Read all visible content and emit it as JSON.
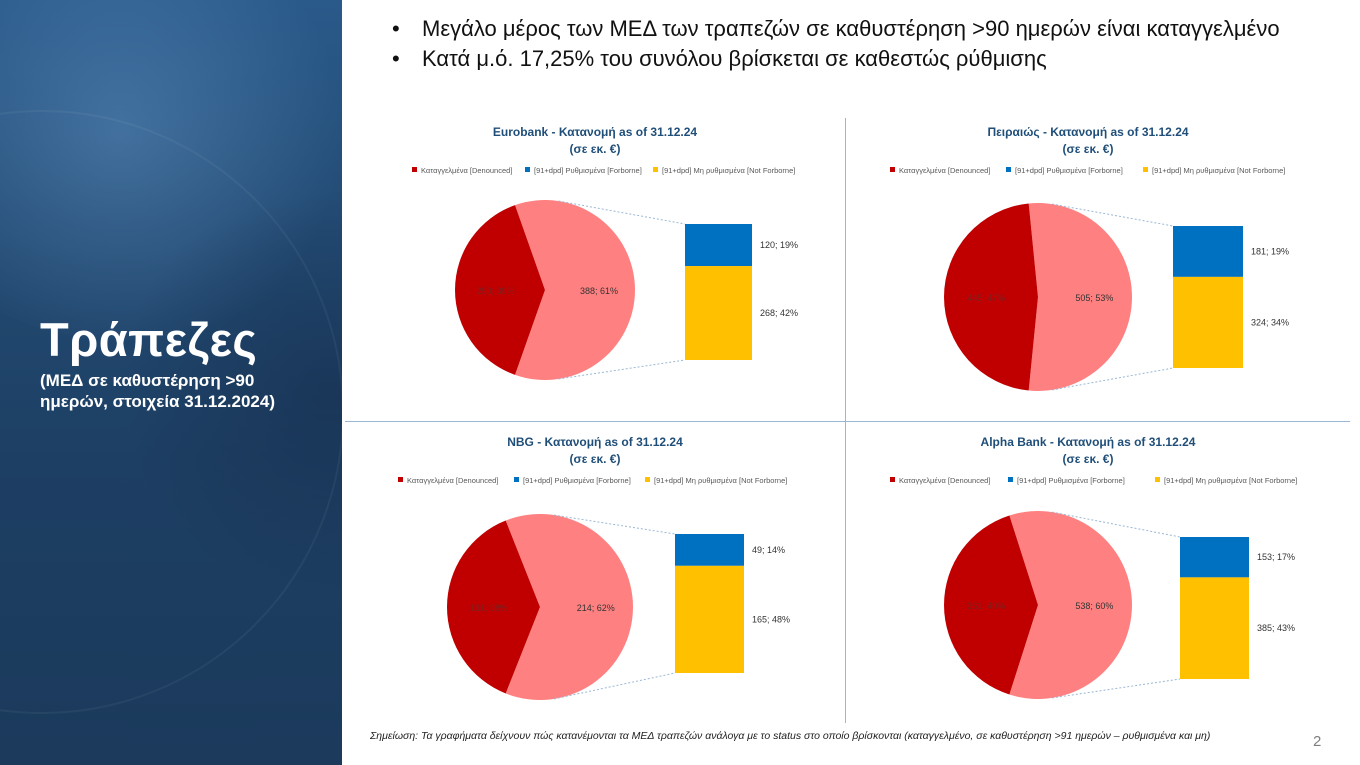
{
  "sidebar": {
    "title": "Τράπεζες",
    "subtitle": "(ΜΕΔ σε καθυστέρηση >90 ημερών, στοιχεία 31.12.2024)"
  },
  "bullets": [
    "Μεγάλο μέρος των ΜΕΔ των τραπεζών σε καθυστέρηση >90 ημερών είναι καταγγελμένο",
    "Κατά μ.ό. 17,25% του συνόλου βρίσκεται σε καθεστώς ρύθμισης"
  ],
  "colors": {
    "denounced": "#c00000",
    "rest": "#ff8080",
    "forborne": "#0070c0",
    "not_forborne": "#ffc000",
    "title_text": "#1f4e79",
    "connector": "#9bb7d4"
  },
  "legend_labels": [
    "Καταγγελμένα [Denounced]",
    "[91+dpd] Ρυθμισμένα [Forborne]",
    "[91+dpd] Μη ρυθμισμένα [Not Forborne]"
  ],
  "chart_data": [
    {
      "type": "pie",
      "title": "Eurobank - Κατανομή as of 31.12.24",
      "subtitle": "(σε εκ. €)",
      "slices": [
        {
          "name": "Καταγγελμένα [Denounced]",
          "value": 250,
          "label": "250; 39%"
        },
        {
          "name": "[91+dpd]",
          "value": 388,
          "label": "388; 61%"
        }
      ],
      "breakdown": [
        {
          "name": "[91+dpd] Ρυθμισμένα [Forborne]",
          "value": 120,
          "label": "120; 19%"
        },
        {
          "name": "[91+dpd] Μη ρυθμισμένα [Not Forborne]",
          "value": 268,
          "label": "268; 42%"
        }
      ]
    },
    {
      "type": "pie",
      "title": "Πειραιώς - Κατανομή as of 31.12.24",
      "subtitle": "(σε εκ. €)",
      "slices": [
        {
          "name": "Καταγγελμένα [Denounced]",
          "value": 445,
          "label": "445; 47%"
        },
        {
          "name": "[91+dpd]",
          "value": 505,
          "label": "505; 53%"
        }
      ],
      "breakdown": [
        {
          "name": "[91+dpd] Ρυθμισμένα [Forborne]",
          "value": 181,
          "label": "181; 19%"
        },
        {
          "name": "[91+dpd] Μη ρυθμισμένα [Not Forborne]",
          "value": 324,
          "label": "324; 34%"
        }
      ]
    },
    {
      "type": "pie",
      "title": "NBG - Κατανομή as of 31.12.24",
      "subtitle": "(σε εκ. €)",
      "slices": [
        {
          "name": "Καταγγελμένα [Denounced]",
          "value": 131,
          "label": "131; 38%"
        },
        {
          "name": "[91+dpd]",
          "value": 214,
          "label": "214; 62%"
        }
      ],
      "breakdown": [
        {
          "name": "[91+dpd] Ρυθμισμένα [Forborne]",
          "value": 49,
          "label": "49; 14%"
        },
        {
          "name": "[91+dpd] Μη ρυθμισμένα [Not Forborne]",
          "value": 165,
          "label": "165; 48%"
        }
      ]
    },
    {
      "type": "pie",
      "title": "Alpha Bank - Κατανομή as of 31.12.24",
      "subtitle": "(σε εκ. €)",
      "slices": [
        {
          "name": "Καταγγελμένα [Denounced]",
          "value": 361,
          "label": "361; 40%"
        },
        {
          "name": "[91+dpd]",
          "value": 538,
          "label": "538; 60%"
        }
      ],
      "breakdown": [
        {
          "name": "[91+dpd] Ρυθμισμένα [Forborne]",
          "value": 153,
          "label": "153; 17%"
        },
        {
          "name": "[91+dpd] Μη ρυθμισμένα [Not Forborne]",
          "value": 385,
          "label": "385; 43%"
        }
      ]
    }
  ],
  "footnote": "Σημείωση: Τα γραφήματα δείχνουν πώς κατανέμονται τα ΜΕΔ τραπεζών ανάλογα με το status στο οποίο βρίσκονται (καταγγελμένο, σε καθυστέρηση >91 ημερών – ρυθμισμένα και μη)",
  "page_number": "2"
}
